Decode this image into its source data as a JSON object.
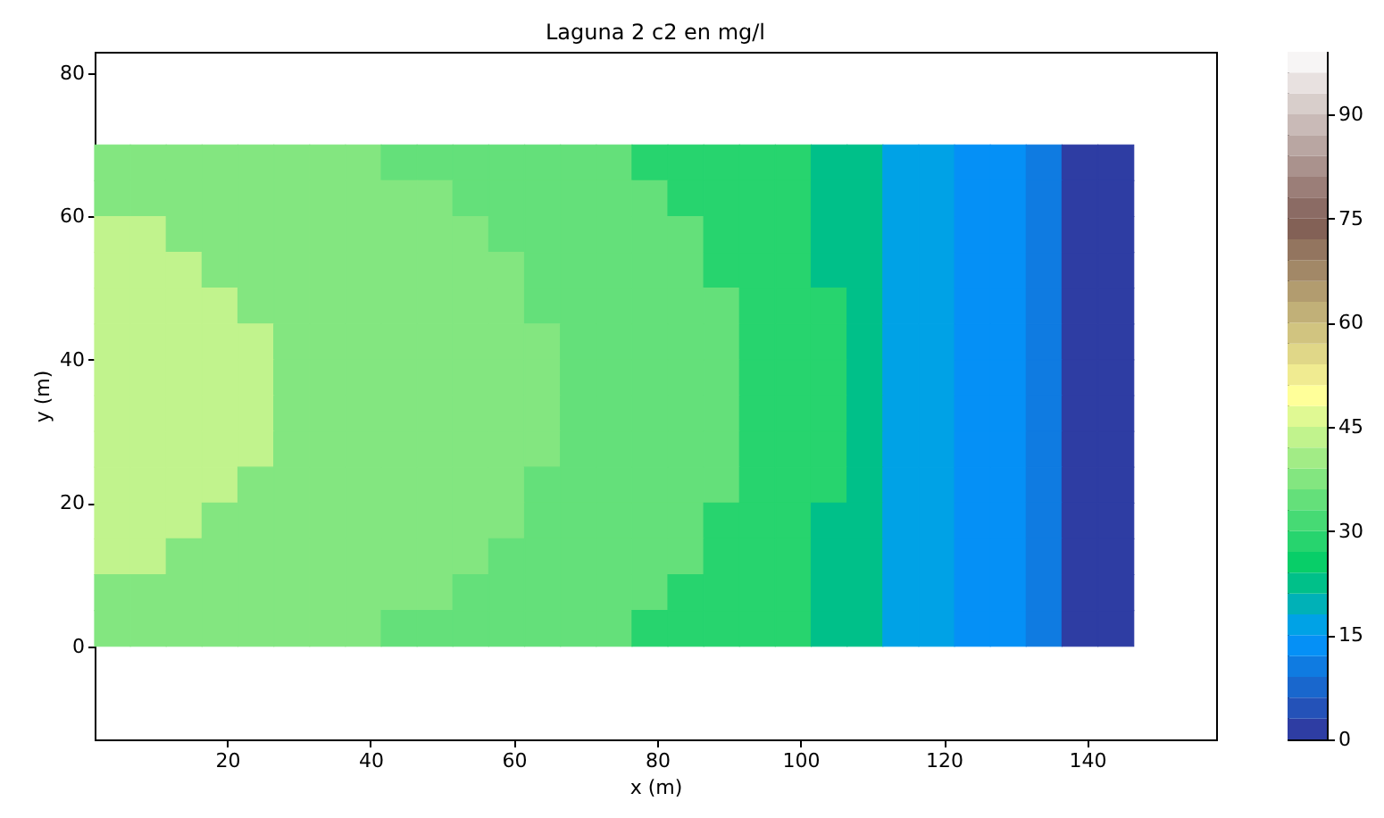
{
  "chart_data": {
    "type": "heatmap",
    "title": "Laguna 2 c2 en mg/l",
    "xlabel": "x (m)",
    "ylabel": "y (m)",
    "x": [
      4,
      9,
      14,
      19,
      24,
      29,
      34,
      39,
      44,
      49,
      54,
      59,
      64,
      69,
      74,
      79,
      84,
      89,
      94,
      99,
      104,
      109,
      114,
      119,
      124,
      129,
      134,
      139,
      144
    ],
    "y": [
      67.5,
      62.5,
      57.5,
      52.5,
      47.5,
      42.5,
      37.5,
      32.5,
      27.5,
      22.5,
      17.5,
      12.5,
      7.5,
      2.5
    ],
    "cells": [
      [
        38,
        38,
        38,
        38,
        38,
        38,
        38,
        38,
        34,
        34,
        34,
        34,
        34,
        34,
        34,
        29,
        29,
        29,
        29,
        29,
        22,
        22,
        16,
        16,
        13,
        13,
        10,
        1,
        1
      ],
      [
        38,
        38,
        38,
        38,
        38,
        38,
        38,
        38,
        38,
        38,
        34,
        34,
        34,
        34,
        34,
        34,
        29,
        29,
        29,
        29,
        22,
        22,
        16,
        16,
        13,
        13,
        10,
        1,
        1
      ],
      [
        43,
        43,
        38,
        38,
        38,
        38,
        38,
        38,
        38,
        38,
        38,
        34,
        34,
        34,
        34,
        34,
        34,
        29,
        29,
        29,
        22,
        22,
        16,
        16,
        13,
        13,
        10,
        1,
        1
      ],
      [
        43,
        43,
        43,
        38,
        38,
        38,
        38,
        38,
        38,
        38,
        38,
        38,
        34,
        34,
        34,
        34,
        34,
        29,
        29,
        29,
        22,
        22,
        16,
        16,
        13,
        13,
        10,
        1,
        1
      ],
      [
        43,
        43,
        43,
        43,
        38,
        38,
        38,
        38,
        38,
        38,
        38,
        38,
        34,
        34,
        34,
        34,
        34,
        34,
        29,
        29,
        29,
        22,
        16,
        16,
        13,
        13,
        10,
        1,
        1
      ],
      [
        43,
        43,
        43,
        43,
        43,
        38,
        38,
        38,
        38,
        38,
        38,
        38,
        38,
        34,
        34,
        34,
        34,
        34,
        29,
        29,
        29,
        22,
        16,
        16,
        13,
        13,
        10,
        1,
        1
      ],
      [
        43,
        43,
        43,
        43,
        43,
        38,
        38,
        38,
        38,
        38,
        38,
        38,
        38,
        34,
        34,
        34,
        34,
        34,
        29,
        29,
        29,
        22,
        16,
        16,
        13,
        13,
        10,
        1,
        1
      ],
      [
        43,
        43,
        43,
        43,
        43,
        38,
        38,
        38,
        38,
        38,
        38,
        38,
        38,
        34,
        34,
        34,
        34,
        34,
        29,
        29,
        29,
        22,
        16,
        16,
        13,
        13,
        10,
        1,
        1
      ],
      [
        43,
        43,
        43,
        43,
        43,
        38,
        38,
        38,
        38,
        38,
        38,
        38,
        38,
        34,
        34,
        34,
        34,
        34,
        29,
        29,
        29,
        22,
        16,
        16,
        13,
        13,
        10,
        1,
        1
      ],
      [
        43,
        43,
        43,
        43,
        38,
        38,
        38,
        38,
        38,
        38,
        38,
        38,
        34,
        34,
        34,
        34,
        34,
        34,
        29,
        29,
        29,
        22,
        16,
        16,
        13,
        13,
        10,
        1,
        1
      ],
      [
        43,
        43,
        43,
        38,
        38,
        38,
        38,
        38,
        38,
        38,
        38,
        38,
        34,
        34,
        34,
        34,
        34,
        29,
        29,
        29,
        22,
        22,
        16,
        16,
        13,
        13,
        10,
        1,
        1
      ],
      [
        43,
        43,
        38,
        38,
        38,
        38,
        38,
        38,
        38,
        38,
        38,
        34,
        34,
        34,
        34,
        34,
        34,
        29,
        29,
        29,
        22,
        22,
        16,
        16,
        13,
        13,
        10,
        1,
        1
      ],
      [
        38,
        38,
        38,
        38,
        38,
        38,
        38,
        38,
        38,
        38,
        34,
        34,
        34,
        34,
        34,
        34,
        29,
        29,
        29,
        29,
        22,
        22,
        16,
        16,
        13,
        13,
        10,
        1,
        1
      ],
      [
        38,
        38,
        38,
        38,
        38,
        38,
        38,
        38,
        34,
        34,
        34,
        34,
        34,
        34,
        34,
        29,
        29,
        29,
        29,
        29,
        22,
        22,
        16,
        16,
        13,
        13,
        10,
        1,
        1
      ]
    ],
    "xlim": [
      1.5,
      158
    ],
    "xticks": [
      20,
      40,
      60,
      80,
      100,
      120,
      140
    ],
    "ylim": [
      -13,
      83
    ],
    "yticks": [
      0,
      20,
      40,
      60,
      80
    ],
    "clim": [
      0,
      99
    ],
    "cticks": [
      0,
      15,
      30,
      45,
      60,
      75,
      90
    ]
  }
}
